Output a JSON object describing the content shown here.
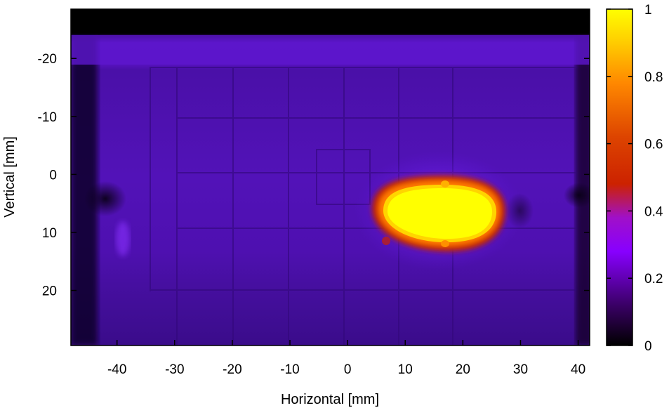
{
  "chart_data": {
    "type": "heatmap",
    "title": "",
    "xlabel": "Horizontal [mm]",
    "ylabel": "Vertical [mm]",
    "xlim": [
      -48,
      42
    ],
    "ylim": [
      -28.5,
      29.5
    ],
    "y_inverted": true,
    "x_ticks": [
      -40,
      -30,
      -20,
      -10,
      0,
      10,
      20,
      30,
      40
    ],
    "y_ticks": [
      -20,
      -10,
      0,
      10,
      20
    ],
    "colorbar": {
      "range": [
        0,
        1
      ],
      "ticks": [
        0,
        0.2,
        0.4,
        0.6,
        0.8,
        1
      ],
      "colormap": [
        "#000000",
        "#3a0066",
        "#8800ff",
        "#cc2200",
        "#ff6600",
        "#ffcc00",
        "#ffff00"
      ]
    },
    "hotspot": {
      "x_range": [
        3,
        27
      ],
      "y_range": [
        0,
        12
      ],
      "peak_center": [
        15,
        6.5
      ],
      "value": 1
    },
    "background_level": 0.15
  }
}
